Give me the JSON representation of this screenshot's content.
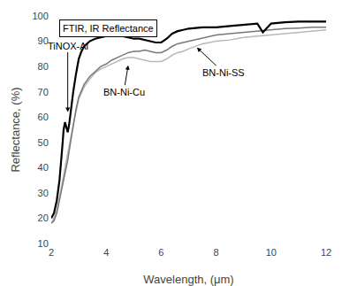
{
  "chart_data": {
    "type": "line",
    "title": "FTIR, IR Reflectance",
    "x_label": "Wavelength, (μm)",
    "y_label": "Reflectance, (%)",
    "xlim": [
      2,
      12
    ],
    "ylim": [
      10,
      100
    ],
    "xticks": [
      2,
      4,
      6,
      8,
      10,
      12
    ],
    "yticks": [
      10,
      20,
      30,
      40,
      50,
      60,
      70,
      80,
      90,
      100
    ],
    "grid": false,
    "series": [
      {
        "name": "TiNOX-Al",
        "color": "#000000",
        "x": [
          2.0,
          2.1,
          2.2,
          2.3,
          2.4,
          2.45,
          2.5,
          2.55,
          2.6,
          2.65,
          2.7,
          2.8,
          2.9,
          3.0,
          3.1,
          3.2,
          3.4,
          3.6,
          3.8,
          4.0,
          4.2,
          4.4,
          4.6,
          4.8,
          5.0,
          5.2,
          5.4,
          5.6,
          5.8,
          6.0,
          6.2,
          6.4,
          6.6,
          6.8,
          7.0,
          7.5,
          8.0,
          8.5,
          9.0,
          9.5,
          9.7,
          10.0,
          10.5,
          11.0,
          11.5,
          12.0
        ],
        "values": [
          20,
          22,
          27,
          35,
          48,
          55,
          58,
          56,
          54,
          57,
          62,
          70,
          77,
          83,
          86,
          88,
          90,
          91,
          91.5,
          92,
          92.5,
          92.5,
          92,
          91.5,
          91,
          91,
          90.5,
          90,
          89.5,
          89.5,
          91,
          93,
          94,
          94.5,
          95,
          95.5,
          95.5,
          96,
          96.5,
          97,
          93.5,
          97,
          97.5,
          97.8,
          97.8,
          97.8
        ]
      },
      {
        "name": "BN-Ni-SS",
        "color": "#787878",
        "x": [
          2.0,
          2.1,
          2.2,
          2.3,
          2.4,
          2.5,
          2.6,
          2.7,
          2.8,
          2.9,
          3.0,
          3.2,
          3.4,
          3.6,
          3.8,
          4.0,
          4.2,
          4.4,
          4.6,
          4.8,
          5.0,
          5.2,
          5.4,
          5.6,
          5.8,
          6.0,
          6.2,
          6.4,
          6.6,
          6.8,
          7.0,
          7.5,
          8.0,
          8.5,
          9.0,
          9.5,
          10.0,
          10.5,
          11.0,
          11.5,
          12.0
        ],
        "values": [
          18,
          19,
          22,
          27,
          33,
          38,
          43,
          50,
          57,
          63,
          68,
          73,
          76,
          78,
          80,
          81,
          82.5,
          83.5,
          84.5,
          85.5,
          86,
          86,
          86.5,
          86,
          85.5,
          85.5,
          86.5,
          88,
          89,
          89.5,
          90,
          91.5,
          92.5,
          93,
          93.5,
          94,
          94.5,
          95,
          95.2,
          95.5,
          95.5
        ]
      },
      {
        "name": "BN-Ni-Cu",
        "color": "#b8b8b8",
        "x": [
          2.0,
          2.1,
          2.2,
          2.3,
          2.4,
          2.5,
          2.6,
          2.7,
          2.8,
          2.9,
          3.0,
          3.2,
          3.4,
          3.6,
          3.8,
          4.0,
          4.2,
          4.4,
          4.6,
          4.8,
          5.0,
          5.2,
          5.4,
          5.6,
          5.8,
          6.0,
          6.2,
          6.4,
          6.6,
          6.8,
          7.0,
          7.5,
          8.0,
          8.5,
          9.0,
          9.5,
          10.0,
          10.5,
          11.0,
          11.5,
          12.0
        ],
        "values": [
          18,
          20,
          23,
          28,
          34,
          40,
          46,
          51,
          57,
          62,
          67,
          72,
          75,
          77.5,
          79,
          80,
          81,
          82,
          83,
          83.5,
          83.5,
          83,
          82.5,
          82,
          82,
          82,
          83,
          84.5,
          85.5,
          86,
          87,
          89,
          90,
          90.5,
          91.5,
          92,
          92.5,
          93,
          93.5,
          94,
          94.5
        ]
      }
    ],
    "annotations": [
      {
        "text": "TiNOX-Al",
        "x": 2.6,
        "y": 62
      },
      {
        "text": "BN-Ni-Cu",
        "x": 4.8,
        "y": 80.5
      },
      {
        "text": "BN-Ni-SS",
        "x": 7.3,
        "y": 87.5
      }
    ]
  }
}
